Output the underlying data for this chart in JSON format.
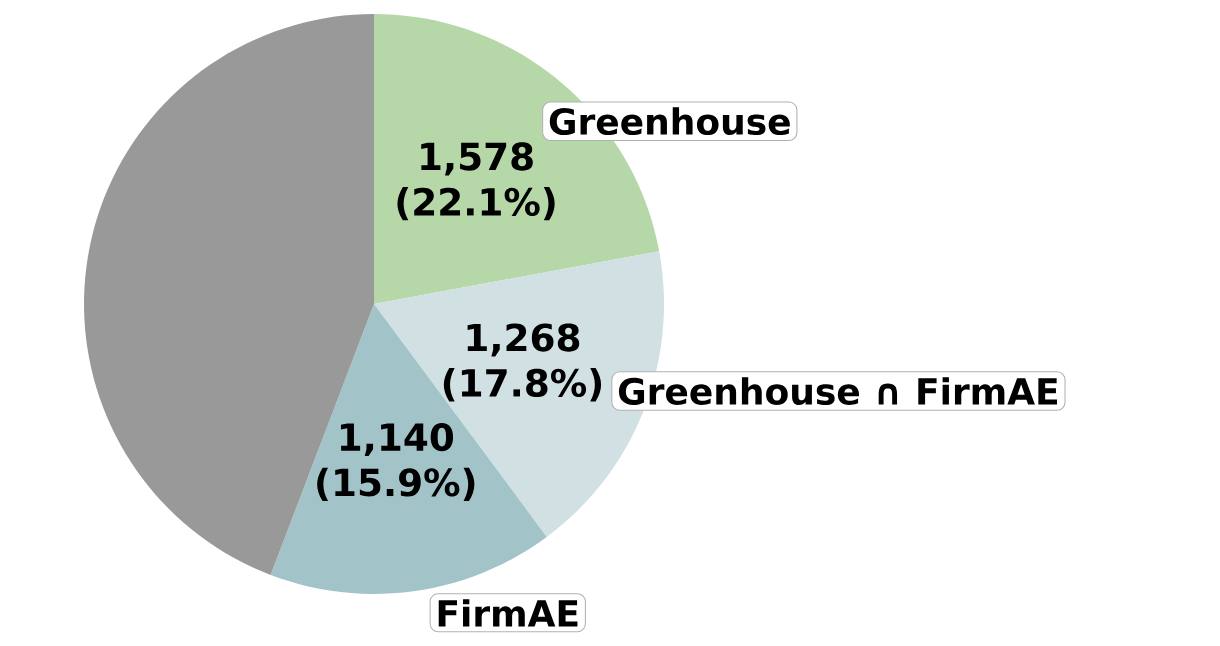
{
  "chart_data": {
    "type": "pie",
    "categories": [
      "Greenhouse",
      "Greenhouse ∩ FirmAE",
      "FirmAE",
      null
    ],
    "values": [
      1578,
      1268,
      1140,
      3157
    ],
    "colors": [
      "#b6d7a8",
      "#d0e0e3",
      "#a2c4c9",
      "#999999"
    ],
    "value_labels": [
      "1,578 (22.1%)",
      "1,268 (17.8%)",
      "1,140 (15.9%)",
      null
    ]
  }
}
